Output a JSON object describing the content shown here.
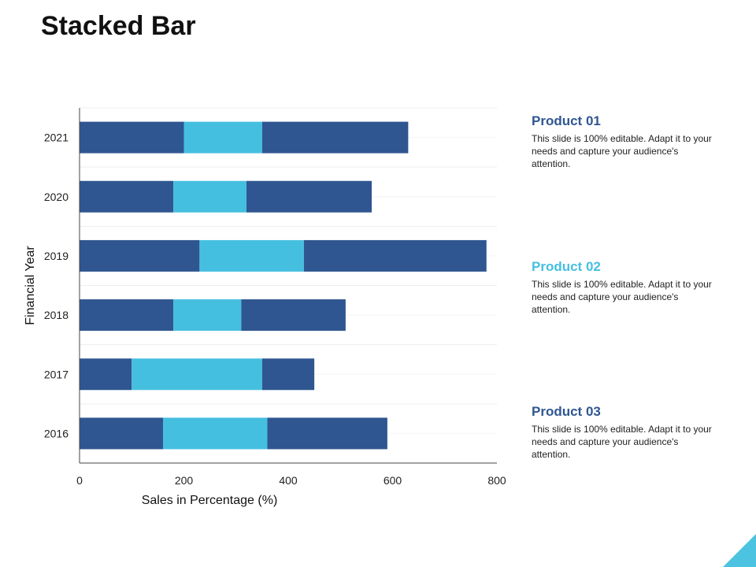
{
  "header": {
    "title": "Stacked Bar"
  },
  "colors": {
    "product1": "#2f5690",
    "product2": "#45bfe0",
    "product3": "#2f5690"
  },
  "legend": [
    {
      "name": "Product 01",
      "desc": "This slide is 100% editable. Adapt it to your needs and capture your audience's attention."
    },
    {
      "name": "Product 02",
      "desc": "This slide is 100% editable. Adapt it to your needs and capture your audience's attention."
    },
    {
      "name": "Product 03",
      "desc": "This slide is 100% editable. Adapt it to your needs and capture your audience's attention."
    }
  ],
  "chart_data": {
    "type": "bar",
    "orientation": "horizontal",
    "stacked": true,
    "title": "",
    "xlabel": "Sales in Percentage (%)",
    "ylabel": "Financial Year",
    "xlim": [
      0,
      800
    ],
    "xticks": [
      0,
      200,
      400,
      600,
      800
    ],
    "grid": true,
    "categories": [
      "2016",
      "2017",
      "2018",
      "2019",
      "2020",
      "2021"
    ],
    "series": [
      {
        "name": "Product 01",
        "values": [
          160,
          100,
          180,
          230,
          180,
          200
        ]
      },
      {
        "name": "Product 02",
        "values": [
          200,
          250,
          130,
          200,
          140,
          150
        ]
      },
      {
        "name": "Product 03",
        "values": [
          230,
          100,
          200,
          350,
          240,
          280
        ]
      }
    ]
  }
}
